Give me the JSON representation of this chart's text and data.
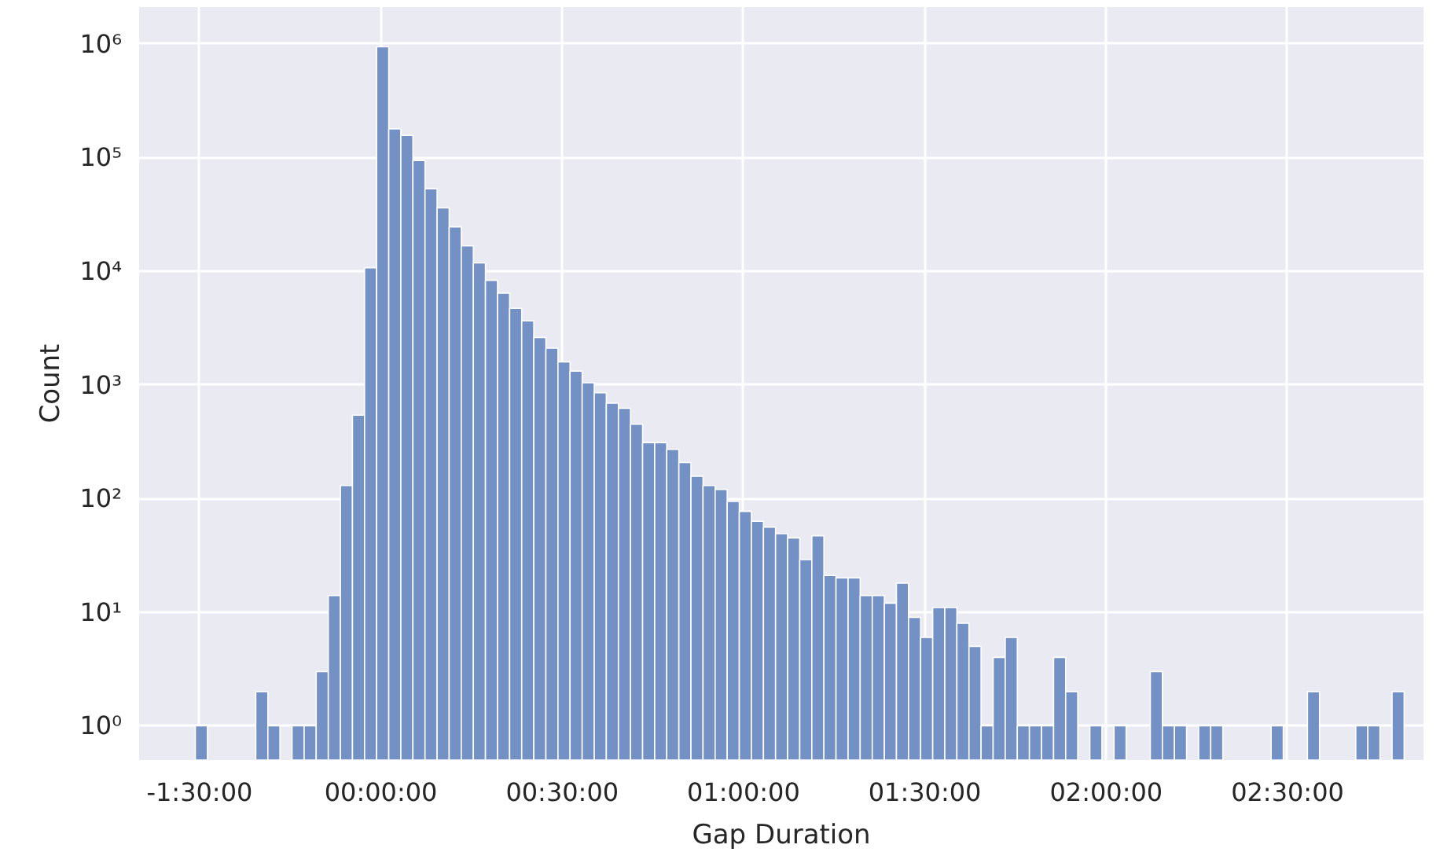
{
  "chart_data": {
    "type": "histogram",
    "xlabel": "Gap Duration",
    "ylabel": "Count",
    "color": "#7391c5",
    "log": "y",
    "grid": true,
    "bins": [
      -30.7,
      -28.7,
      -26.7,
      -24.7,
      -22.7,
      -20.7,
      -18.7,
      -16.7,
      -14.7,
      -12.7,
      -10.7,
      -8.7,
      -6.7,
      -4.7,
      -2.7,
      -0.7,
      1.3,
      3.3,
      5.3,
      7.3,
      9.3,
      11.3,
      13.3,
      15.3,
      17.3,
      19.3,
      21.3,
      23.3,
      25.3,
      27.3,
      29.3,
      31.3,
      33.3,
      35.3,
      37.3,
      39.3,
      41.3,
      43.3,
      45.3,
      47.3,
      49.3,
      51.3,
      53.3,
      55.3,
      57.3,
      59.3,
      61.3,
      63.3,
      65.3,
      67.3,
      69.3,
      71.3,
      73.3,
      75.3,
      77.3,
      79.3,
      81.3,
      83.3,
      85.3,
      87.3,
      89.3,
      91.3,
      93.3,
      95.3,
      97.3,
      99.3,
      101.3,
      103.3,
      105.3,
      107.3,
      109.3,
      111.3,
      113.3,
      115.3,
      117.3,
      119.3,
      121.3,
      123.3,
      125.3,
      127.3,
      129.3,
      131.3,
      133.3,
      135.3,
      137.3,
      139.3,
      141.3,
      143.3,
      145.3,
      147.3,
      149.3,
      151.3,
      153.3,
      155.3,
      157.3,
      159.3,
      161.3,
      163.3,
      165.3,
      167.3,
      169.3
    ],
    "values": [
      1,
      null,
      null,
      null,
      null,
      2,
      1,
      null,
      1,
      1,
      3,
      14,
      130,
      540,
      10700,
      940000,
      178000,
      156000,
      94000,
      53000,
      36000,
      24500,
      16700,
      11800,
      8300,
      6400,
      4700,
      3650,
      2600,
      2100,
      1590,
      1320,
      1040,
      850,
      690,
      620,
      450,
      310,
      310,
      270,
      207,
      157,
      130,
      120,
      94,
      77,
      63,
      56,
      49,
      45,
      29,
      47,
      21,
      20,
      20,
      14,
      14,
      12,
      18,
      9,
      6,
      11,
      11,
      8,
      5,
      1,
      4,
      6,
      1,
      1,
      1,
      4,
      2,
      null,
      1,
      null,
      1,
      null,
      null,
      3,
      1,
      1,
      null,
      1,
      1,
      null,
      null,
      null,
      null,
      1,
      null,
      null,
      2,
      null,
      null,
      null,
      1,
      1,
      null,
      2
    ],
    "xlim": [
      -40,
      172.5
    ],
    "ylim": [
      0.5,
      2100000
    ],
    "xticks": [
      {
        "value": -30,
        "label": "-1:30:00"
      },
      {
        "value": 0,
        "label": "00:00:00"
      },
      {
        "value": 30,
        "label": "00:30:00"
      },
      {
        "value": 60,
        "label": "01:00:00"
      },
      {
        "value": 90,
        "label": "01:30:00"
      },
      {
        "value": 120,
        "label": "02:00:00"
      },
      {
        "value": 150,
        "label": "02:30:00"
      }
    ],
    "yticks": [
      {
        "value": 1,
        "label": "10⁰"
      },
      {
        "value": 10,
        "label": "10¹"
      },
      {
        "value": 100,
        "label": "10²"
      },
      {
        "value": 1000,
        "label": "10³"
      },
      {
        "value": 10000,
        "label": "10⁴"
      },
      {
        "value": 100000,
        "label": "10⁵"
      },
      {
        "value": 1000000,
        "label": "10⁶"
      }
    ]
  }
}
